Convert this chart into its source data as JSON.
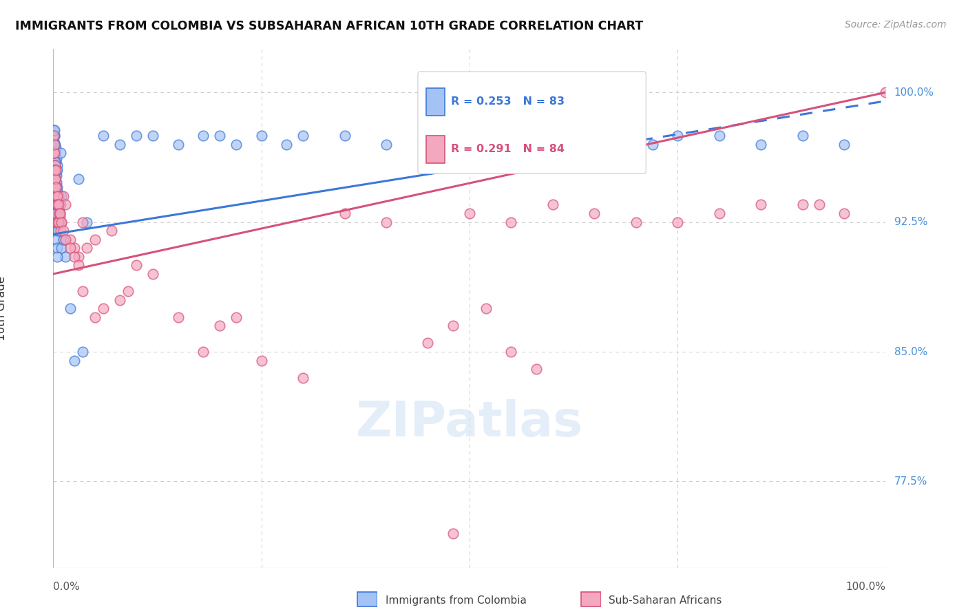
{
  "title": "IMMIGRANTS FROM COLOMBIA VS SUBSAHARAN AFRICAN 10TH GRADE CORRELATION CHART",
  "source": "Source: ZipAtlas.com",
  "ylabel": "10th Grade",
  "legend_blue_r": "R = 0.253",
  "legend_blue_n": "N = 83",
  "legend_pink_r": "R = 0.291",
  "legend_pink_n": "N = 84",
  "legend_label_blue": "Immigrants from Colombia",
  "legend_label_pink": "Sub-Saharan Africans",
  "blue_color": "#a4c2f4",
  "pink_color": "#f4a8c0",
  "blue_line_color": "#3c78d8",
  "pink_line_color": "#d5527a",
  "xlim": [
    0.0,
    100.0
  ],
  "ylim": [
    72.5,
    102.5
  ],
  "ytick_positions": [
    77.5,
    85.0,
    92.5,
    100.0
  ],
  "ytick_labels": [
    "77.5%",
    "85.0%",
    "92.5%",
    "100.0%"
  ],
  "blue_x": [
    0.1,
    0.1,
    0.15,
    0.2,
    0.2,
    0.25,
    0.3,
    0.3,
    0.3,
    0.35,
    0.4,
    0.4,
    0.45,
    0.5,
    0.5,
    0.55,
    0.6,
    0.65,
    0.7,
    0.7,
    0.8,
    0.9,
    1.0,
    1.2,
    1.5,
    2.0,
    3.0,
    3.5,
    0.05,
    0.05,
    0.07,
    0.08,
    0.08,
    0.1,
    0.1,
    0.12,
    0.15,
    0.15,
    0.18,
    0.18,
    0.2,
    0.2,
    0.22,
    0.25,
    0.28,
    0.3,
    0.35,
    0.4,
    0.45,
    0.5,
    0.55,
    0.65,
    0.8,
    1.0,
    1.2,
    2.5,
    4.0,
    6.0,
    8.0,
    10.0,
    12.0,
    15.0,
    18.0,
    20.0,
    22.0,
    25.0,
    28.0,
    30.0,
    35.0,
    40.0,
    45.0,
    50.0,
    55.0,
    60.0,
    65.0,
    68.0,
    70.0,
    72.0,
    75.0,
    80.0,
    85.0,
    90.0,
    95.0
  ],
  "blue_y": [
    95.5,
    96.2,
    97.5,
    96.5,
    97.0,
    95.2,
    96.0,
    95.5,
    96.8,
    95.2,
    94.8,
    96.2,
    95.8,
    94.5,
    95.5,
    94.2,
    93.8,
    93.5,
    93.2,
    93.8,
    92.5,
    96.5,
    94.0,
    91.5,
    90.5,
    87.5,
    95.0,
    85.0,
    97.2,
    97.5,
    96.5,
    97.8,
    96.5,
    96.0,
    97.0,
    97.5,
    97.8,
    95.5,
    96.0,
    95.8,
    94.5,
    94.0,
    93.8,
    93.5,
    93.0,
    92.5,
    92.0,
    91.5,
    91.0,
    90.5,
    92.0,
    93.5,
    93.0,
    91.0,
    91.5,
    84.5,
    92.5,
    97.5,
    97.0,
    97.5,
    97.5,
    97.0,
    97.5,
    97.5,
    97.0,
    97.5,
    97.0,
    97.5,
    97.5,
    97.0,
    97.5,
    97.5,
    97.0,
    97.5,
    97.5,
    97.0,
    97.5,
    97.0,
    97.5,
    97.5,
    97.0,
    97.5,
    97.0
  ],
  "pink_x": [
    0.08,
    0.1,
    0.15,
    0.2,
    0.25,
    0.3,
    0.35,
    0.4,
    0.5,
    0.6,
    0.7,
    0.8,
    0.9,
    1.0,
    1.2,
    1.5,
    2.0,
    2.5,
    3.0,
    3.5,
    4.0,
    5.0,
    6.0,
    8.0,
    10.0,
    12.0,
    15.0,
    18.0,
    20.0,
    0.05,
    0.07,
    0.08,
    0.1,
    0.12,
    0.15,
    0.18,
    0.2,
    0.22,
    0.25,
    0.28,
    0.3,
    0.35,
    0.4,
    0.45,
    0.5,
    0.55,
    0.6,
    0.65,
    0.7,
    0.8,
    0.9,
    1.0,
    1.2,
    1.5,
    2.0,
    2.5,
    3.0,
    3.5,
    5.0,
    7.0,
    9.0,
    22.0,
    25.0,
    30.0,
    35.0,
    40.0,
    48.0,
    50.0,
    55.0,
    60.0,
    65.0,
    70.0,
    75.0,
    80.0,
    85.0,
    90.0,
    92.0,
    95.0,
    100.0,
    45.0,
    48.0,
    52.0,
    55.0,
    58.0
  ],
  "pink_y": [
    95.5,
    95.0,
    94.5,
    95.8,
    95.5,
    94.0,
    94.5,
    93.5,
    93.5,
    94.0,
    93.0,
    92.8,
    93.5,
    92.5,
    94.0,
    93.5,
    91.5,
    91.0,
    90.5,
    92.5,
    91.0,
    91.5,
    87.5,
    88.0,
    90.0,
    89.5,
    87.0,
    85.0,
    86.5,
    97.5,
    96.5,
    96.5,
    96.5,
    97.0,
    95.5,
    95.0,
    95.0,
    95.5,
    95.0,
    95.5,
    94.5,
    93.5,
    92.5,
    94.0,
    93.5,
    92.5,
    93.5,
    92.5,
    93.0,
    93.0,
    92.0,
    92.5,
    92.0,
    91.5,
    91.0,
    90.5,
    90.0,
    88.5,
    87.0,
    92.0,
    88.5,
    87.0,
    84.5,
    83.5,
    93.0,
    92.5,
    74.5,
    93.0,
    92.5,
    93.5,
    93.0,
    92.5,
    92.5,
    93.0,
    93.5,
    93.5,
    93.5,
    93.0,
    100.0,
    85.5,
    86.5,
    87.5,
    85.0,
    84.0
  ],
  "blue_line_x0": 0.0,
  "blue_line_y0": 91.8,
  "blue_line_x1": 100.0,
  "blue_line_y1": 99.5,
  "blue_solid_end": 65.0,
  "pink_line_x0": 0.0,
  "pink_line_y0": 89.5,
  "pink_line_x1": 100.0,
  "pink_line_y1": 100.0
}
